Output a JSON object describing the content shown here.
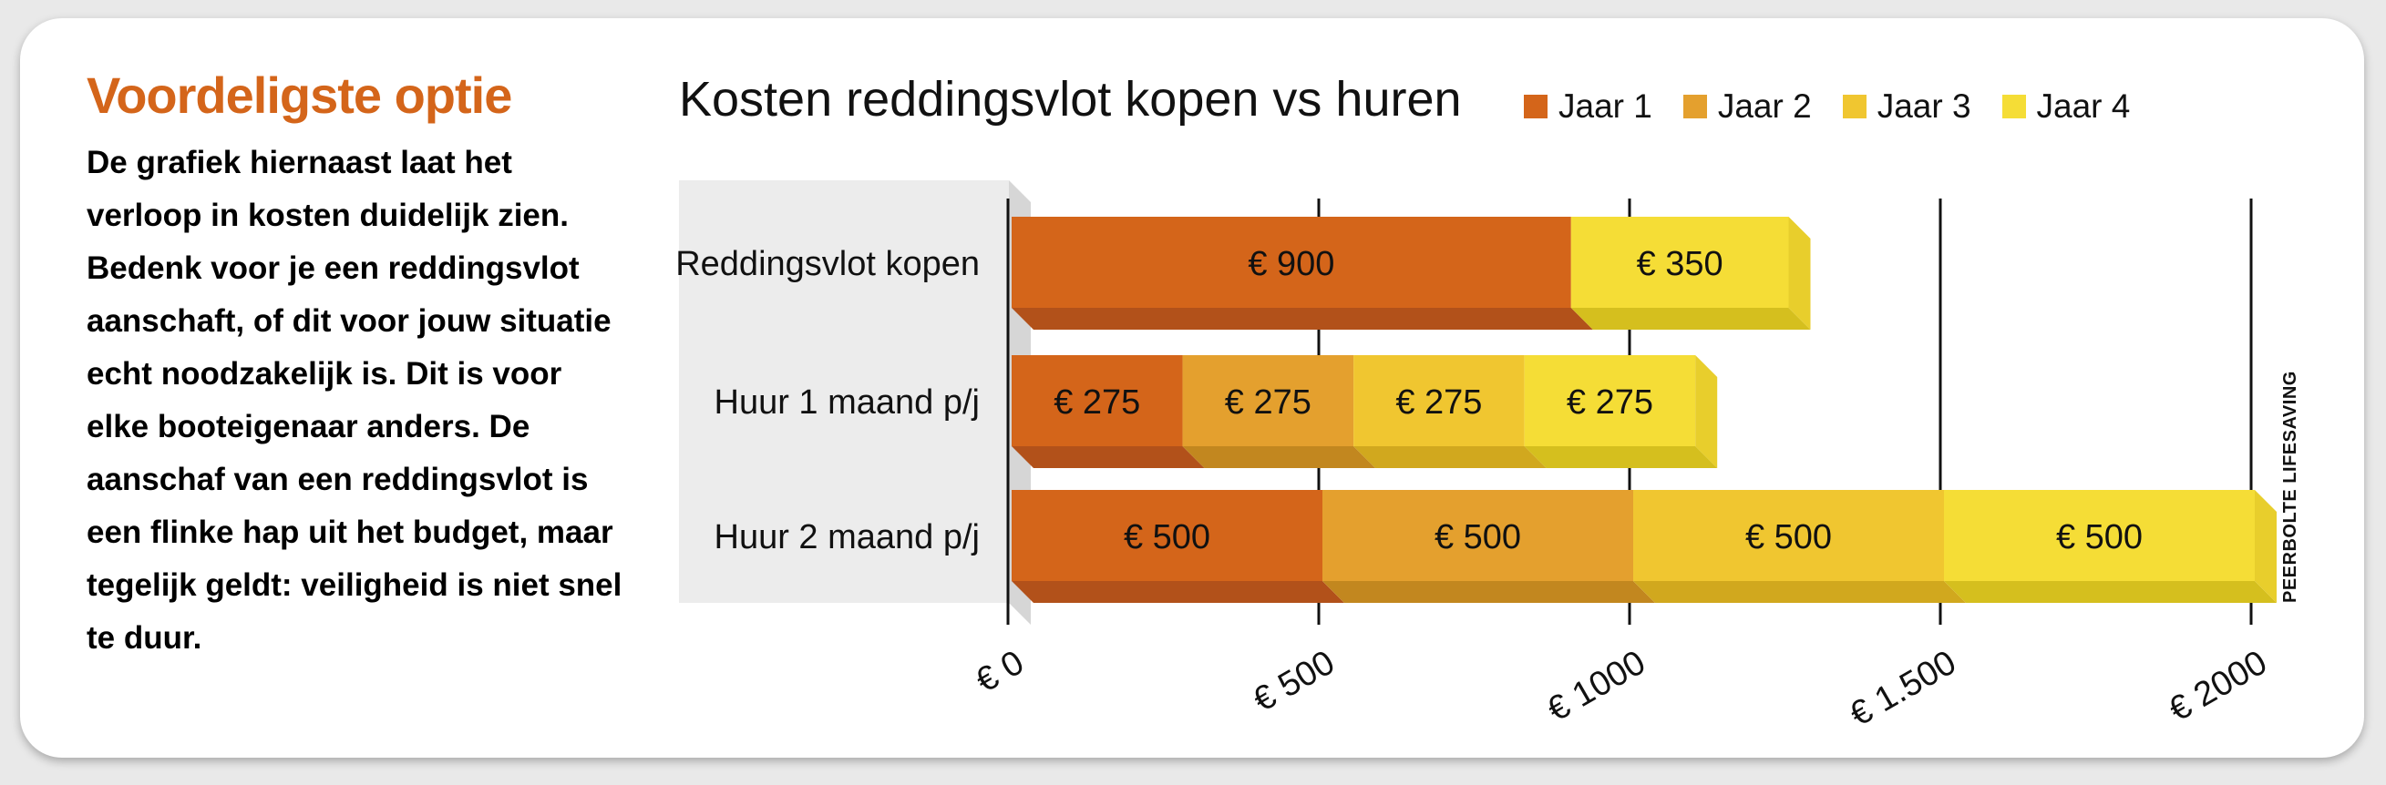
{
  "sidebar": {
    "heading": "Voordeligste optie",
    "body": "De grafiek hiernaast laat het verloop in kosten duidelijk zien. Bedenk voor je een reddingsvlot aanschaft, of dit voor jouw situatie echt noodzakelijk is. Dit is voor elke booteigenaar anders. De aanschaf van een reddingsvlot is een flinke hap uit het budget, maar tegelijk geldt: veiligheid is niet snel te duur."
  },
  "credit": "PEERBOLTE LIFESAVING",
  "colors": {
    "series": [
      "#d4651a",
      "#e4a02e",
      "#f0c630",
      "#f5dd36"
    ],
    "series_dark": [
      "#b2511a",
      "#c2871f",
      "#d1a81e",
      "#d5bf1e"
    ],
    "series_side": [
      "#c95f1c",
      "#d99628",
      "#e6bb29",
      "#e8ce2c"
    ],
    "panel": "#ececec"
  },
  "chart_data": {
    "type": "bar",
    "orientation": "horizontal",
    "stacked": true,
    "title": "Kosten reddingsvlot kopen vs huren",
    "categories": [
      "Reddingsvlot kopen",
      "Huur 1 maand p/j",
      "Huur 2 maand p/j"
    ],
    "series": [
      {
        "name": "Jaar 1",
        "values": [
          900,
          275,
          500
        ]
      },
      {
        "name": "Jaar 2",
        "values": [
          0,
          275,
          500
        ]
      },
      {
        "name": "Jaar 3",
        "values": [
          0,
          275,
          500
        ]
      },
      {
        "name": "Jaar 4",
        "values": [
          350,
          275,
          500
        ]
      }
    ],
    "data_labels": [
      [
        "€ 900",
        "€ 275",
        "€ 500"
      ],
      [
        "",
        "€ 275",
        "€ 500"
      ],
      [
        "",
        "€ 275",
        "€ 500"
      ],
      [
        "€ 350",
        "€ 275",
        "€ 500"
      ]
    ],
    "xlim": [
      0,
      2000
    ],
    "xticks": [
      0,
      500,
      1000,
      1500,
      2000
    ],
    "xtick_labels": [
      "€ 0",
      "€ 500",
      "€ 1000",
      "€ 1.500",
      "€ 2000"
    ],
    "grid": true,
    "legend_position": "top-right"
  }
}
